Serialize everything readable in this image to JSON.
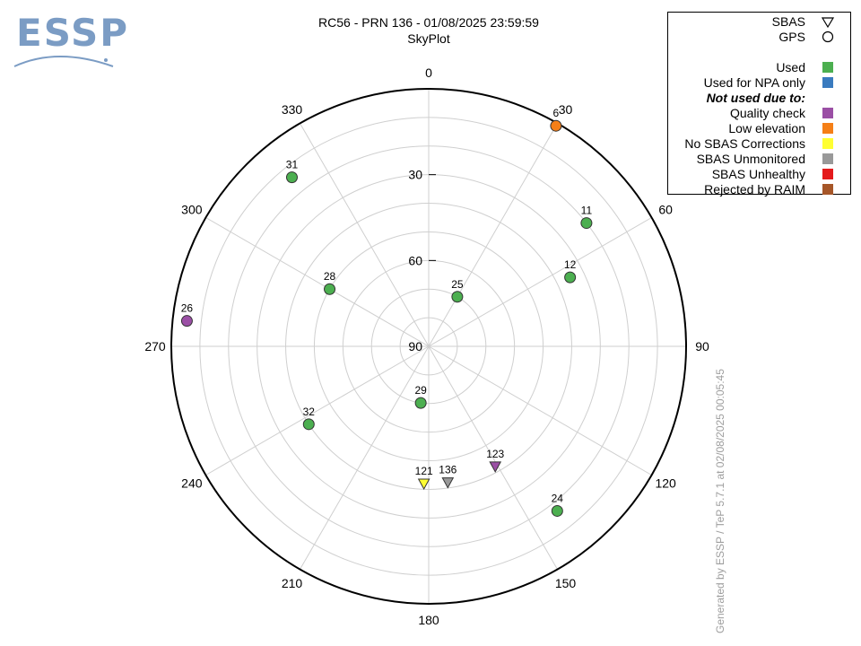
{
  "header": {
    "logo_text": "ESSP",
    "title": "RC56 - PRN 136 - 01/08/2025 23:59:59",
    "subtitle": "SkyPlot"
  },
  "footer": {
    "text": "Generated by ESSP / TeP 5.7.1 at 02/08/2025 00:05:45"
  },
  "legend": {
    "rows": [
      {
        "label": "SBAS",
        "symbol": "triangle",
        "bold": false
      },
      {
        "label": "GPS",
        "symbol": "circle",
        "bold": false
      },
      {
        "label": "Used",
        "color": "#4caf50",
        "bold": false
      },
      {
        "label": "Used for NPA only",
        "color": "#3a7bbf",
        "bold": false
      },
      {
        "label": "Not used due to:",
        "bold": true
      },
      {
        "label": "Quality check",
        "color": "#9b4fa5",
        "bold": false
      },
      {
        "label": "Low elevation",
        "color": "#f57f17",
        "bold": false
      },
      {
        "label": "No SBAS Corrections",
        "color": "#ffff33",
        "bold": false
      },
      {
        "label": "SBAS Unmonitored",
        "color": "#999999",
        "bold": false
      },
      {
        "label": "SBAS Unhealthy",
        "color": "#e41a1c",
        "bold": false
      },
      {
        "label": "Rejected by RAIM",
        "color": "#a65628",
        "bold": false
      }
    ]
  },
  "chart_data": {
    "type": "scatter",
    "projection": "polar-skyplot",
    "title": "RC56 - PRN 136 - 01/08/2025 23:59:59",
    "subtitle": "SkyPlot",
    "azimuth_ticks": [
      "0",
      "30",
      "60",
      "90",
      "120",
      "150",
      "180",
      "210",
      "240",
      "270",
      "300",
      "330"
    ],
    "elevation_ticks": [
      "30",
      "60",
      "90"
    ],
    "elevation_range": [
      0,
      90
    ],
    "grid": true,
    "legend_position": "top-right",
    "satellites": [
      {
        "prn": "6",
        "system": "GPS",
        "status": "Low elevation",
        "color": "#f57f17",
        "azimuth": 30,
        "elevation": 1
      },
      {
        "prn": "11",
        "system": "GPS",
        "status": "Used",
        "color": "#4caf50",
        "azimuth": 52,
        "elevation": 20
      },
      {
        "prn": "12",
        "system": "GPS",
        "status": "Used",
        "color": "#4caf50",
        "azimuth": 64,
        "elevation": 35
      },
      {
        "prn": "25",
        "system": "GPS",
        "status": "Used",
        "color": "#4caf50",
        "azimuth": 30,
        "elevation": 70
      },
      {
        "prn": "31",
        "system": "GPS",
        "status": "Used",
        "color": "#4caf50",
        "azimuth": 321,
        "elevation": 14
      },
      {
        "prn": "28",
        "system": "GPS",
        "status": "Used",
        "color": "#4caf50",
        "azimuth": 300,
        "elevation": 50
      },
      {
        "prn": "26",
        "system": "GPS",
        "status": "Quality check",
        "color": "#9b4fa5",
        "azimuth": 276,
        "elevation": 5
      },
      {
        "prn": "29",
        "system": "GPS",
        "status": "Used",
        "color": "#4caf50",
        "azimuth": 188,
        "elevation": 70
      },
      {
        "prn": "32",
        "system": "GPS",
        "status": "Used",
        "color": "#4caf50",
        "azimuth": 237,
        "elevation": 40
      },
      {
        "prn": "24",
        "system": "GPS",
        "status": "Used",
        "color": "#4caf50",
        "azimuth": 142,
        "elevation": 17
      },
      {
        "prn": "121",
        "system": "SBAS",
        "status": "No SBAS Corrections",
        "color": "#ffff33",
        "azimuth": 182,
        "elevation": 42
      },
      {
        "prn": "136",
        "system": "SBAS",
        "status": "SBAS Unmonitored",
        "color": "#999999",
        "azimuth": 172,
        "elevation": 42
      },
      {
        "prn": "123",
        "system": "SBAS",
        "status": "Quality check",
        "color": "#9b4fa5",
        "azimuth": 151,
        "elevation": 42
      }
    ]
  }
}
